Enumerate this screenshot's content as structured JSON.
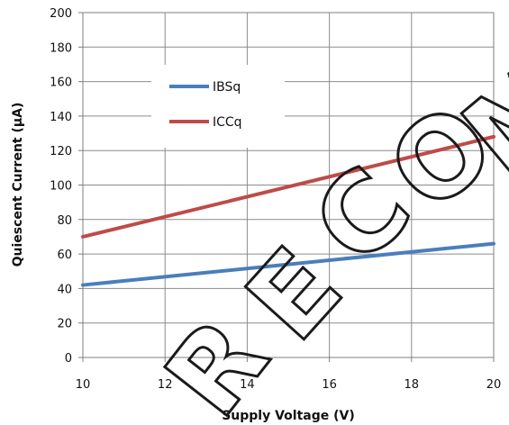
{
  "chart_data": {
    "type": "line",
    "xlabel": "Supply Voltage (V)",
    "ylabel": "Quiescent Current (µA)",
    "xlim": [
      10,
      20
    ],
    "ylim": [
      0,
      200
    ],
    "x_ticks": [
      10,
      12,
      14,
      16,
      18,
      20
    ],
    "y_ticks": [
      0,
      20,
      40,
      60,
      80,
      100,
      120,
      140,
      160,
      180,
      200
    ],
    "grid": true,
    "legend": "upper-left inside plot",
    "series": [
      {
        "name": "IBSq",
        "color": "#4a7ebb",
        "x": [
          10,
          20
        ],
        "y": [
          42,
          66
        ]
      },
      {
        "name": "ICCq",
        "color": "#be4b48",
        "x": [
          10,
          20
        ],
        "y": [
          70,
          128
        ]
      }
    ]
  },
  "watermark": {
    "text": "RECOM"
  }
}
